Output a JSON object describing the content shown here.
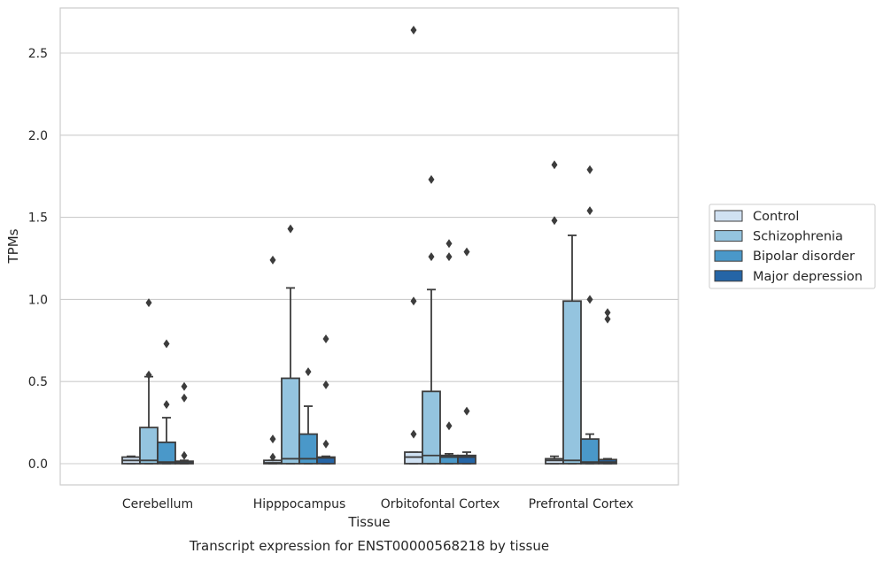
{
  "caption": "Transcript expression for ENST00000568218 by tissue",
  "chart_data": {
    "type": "box",
    "xlabel": "Tissue",
    "ylabel": "TPMs",
    "ylim": [
      -0.13,
      2.78
    ],
    "yticks": [
      0.0,
      0.5,
      1.0,
      1.5,
      2.0,
      2.5
    ],
    "ytick_labels": [
      "0.0",
      "0.5",
      "1.0",
      "1.5",
      "2.0",
      "2.5"
    ],
    "grid": "horizontal",
    "legend_position": "right",
    "categories": [
      "Cerebellum",
      "Hipppocampus",
      "Orbitofontal Cortex",
      "Prefrontal Cortex"
    ],
    "series": [
      {
        "name": "Control",
        "color": "#d0e1f2",
        "boxes": [
          {
            "q1": 0.0,
            "median": 0.02,
            "q3": 0.04,
            "whisker_low": 0.0,
            "whisker_high": 0.045,
            "outliers": []
          },
          {
            "q1": 0.0,
            "median": 0.005,
            "q3": 0.02,
            "whisker_low": 0.0,
            "whisker_high": 0.02,
            "outliers": [
              0.04,
              0.15,
              1.24
            ]
          },
          {
            "q1": 0.0,
            "median": 0.04,
            "q3": 0.07,
            "whisker_low": 0.0,
            "whisker_high": 0.07,
            "outliers": [
              0.18,
              0.99,
              2.64
            ]
          },
          {
            "q1": 0.0,
            "median": 0.02,
            "q3": 0.03,
            "whisker_low": 0.0,
            "whisker_high": 0.045,
            "outliers": [
              1.48,
              1.82
            ]
          }
        ]
      },
      {
        "name": "Schizophrenia",
        "color": "#94c4df",
        "boxes": [
          {
            "q1": 0.0,
            "median": 0.02,
            "q3": 0.22,
            "whisker_low": 0.0,
            "whisker_high": 0.53,
            "outliers": [
              0.54,
              0.98
            ]
          },
          {
            "q1": 0.0,
            "median": 0.03,
            "q3": 0.52,
            "whisker_low": 0.0,
            "whisker_high": 1.07,
            "outliers": [
              1.43
            ]
          },
          {
            "q1": 0.0,
            "median": 0.05,
            "q3": 0.44,
            "whisker_low": 0.0,
            "whisker_high": 1.06,
            "outliers": [
              1.26,
              1.73
            ]
          },
          {
            "q1": 0.0,
            "median": 0.02,
            "q3": 0.99,
            "whisker_low": 0.0,
            "whisker_high": 1.39,
            "outliers": []
          }
        ]
      },
      {
        "name": "Bipolar disorder",
        "color": "#4a98c9",
        "boxes": [
          {
            "q1": 0.0,
            "median": 0.01,
            "q3": 0.13,
            "whisker_low": 0.0,
            "whisker_high": 0.28,
            "outliers": [
              0.36,
              0.73
            ]
          },
          {
            "q1": 0.0,
            "median": 0.03,
            "q3": 0.18,
            "whisker_low": 0.0,
            "whisker_high": 0.35,
            "outliers": [
              0.56
            ]
          },
          {
            "q1": 0.0,
            "median": 0.04,
            "q3": 0.05,
            "whisker_low": 0.0,
            "whisker_high": 0.06,
            "outliers": [
              0.23,
              1.26,
              1.34
            ]
          },
          {
            "q1": 0.0,
            "median": 0.01,
            "q3": 0.15,
            "whisker_low": 0.0,
            "whisker_high": 0.18,
            "outliers": [
              1.0,
              1.54,
              1.79
            ]
          }
        ]
      },
      {
        "name": "Major depression",
        "color": "#2565a6",
        "boxes": [
          {
            "q1": 0.0,
            "median": 0.005,
            "q3": 0.015,
            "whisker_low": 0.0,
            "whisker_high": 0.02,
            "outliers": [
              0.05,
              0.4,
              0.47
            ]
          },
          {
            "q1": 0.0,
            "median": 0.035,
            "q3": 0.04,
            "whisker_low": 0.0,
            "whisker_high": 0.045,
            "outliers": [
              0.12,
              0.48,
              0.76
            ]
          },
          {
            "q1": 0.0,
            "median": 0.04,
            "q3": 0.05,
            "whisker_low": 0.0,
            "whisker_high": 0.07,
            "outliers": [
              0.32,
              1.29
            ]
          },
          {
            "q1": 0.0,
            "median": 0.01,
            "q3": 0.025,
            "whisker_low": 0.0,
            "whisker_high": 0.03,
            "outliers": [
              0.88,
              0.92
            ]
          }
        ]
      }
    ]
  }
}
